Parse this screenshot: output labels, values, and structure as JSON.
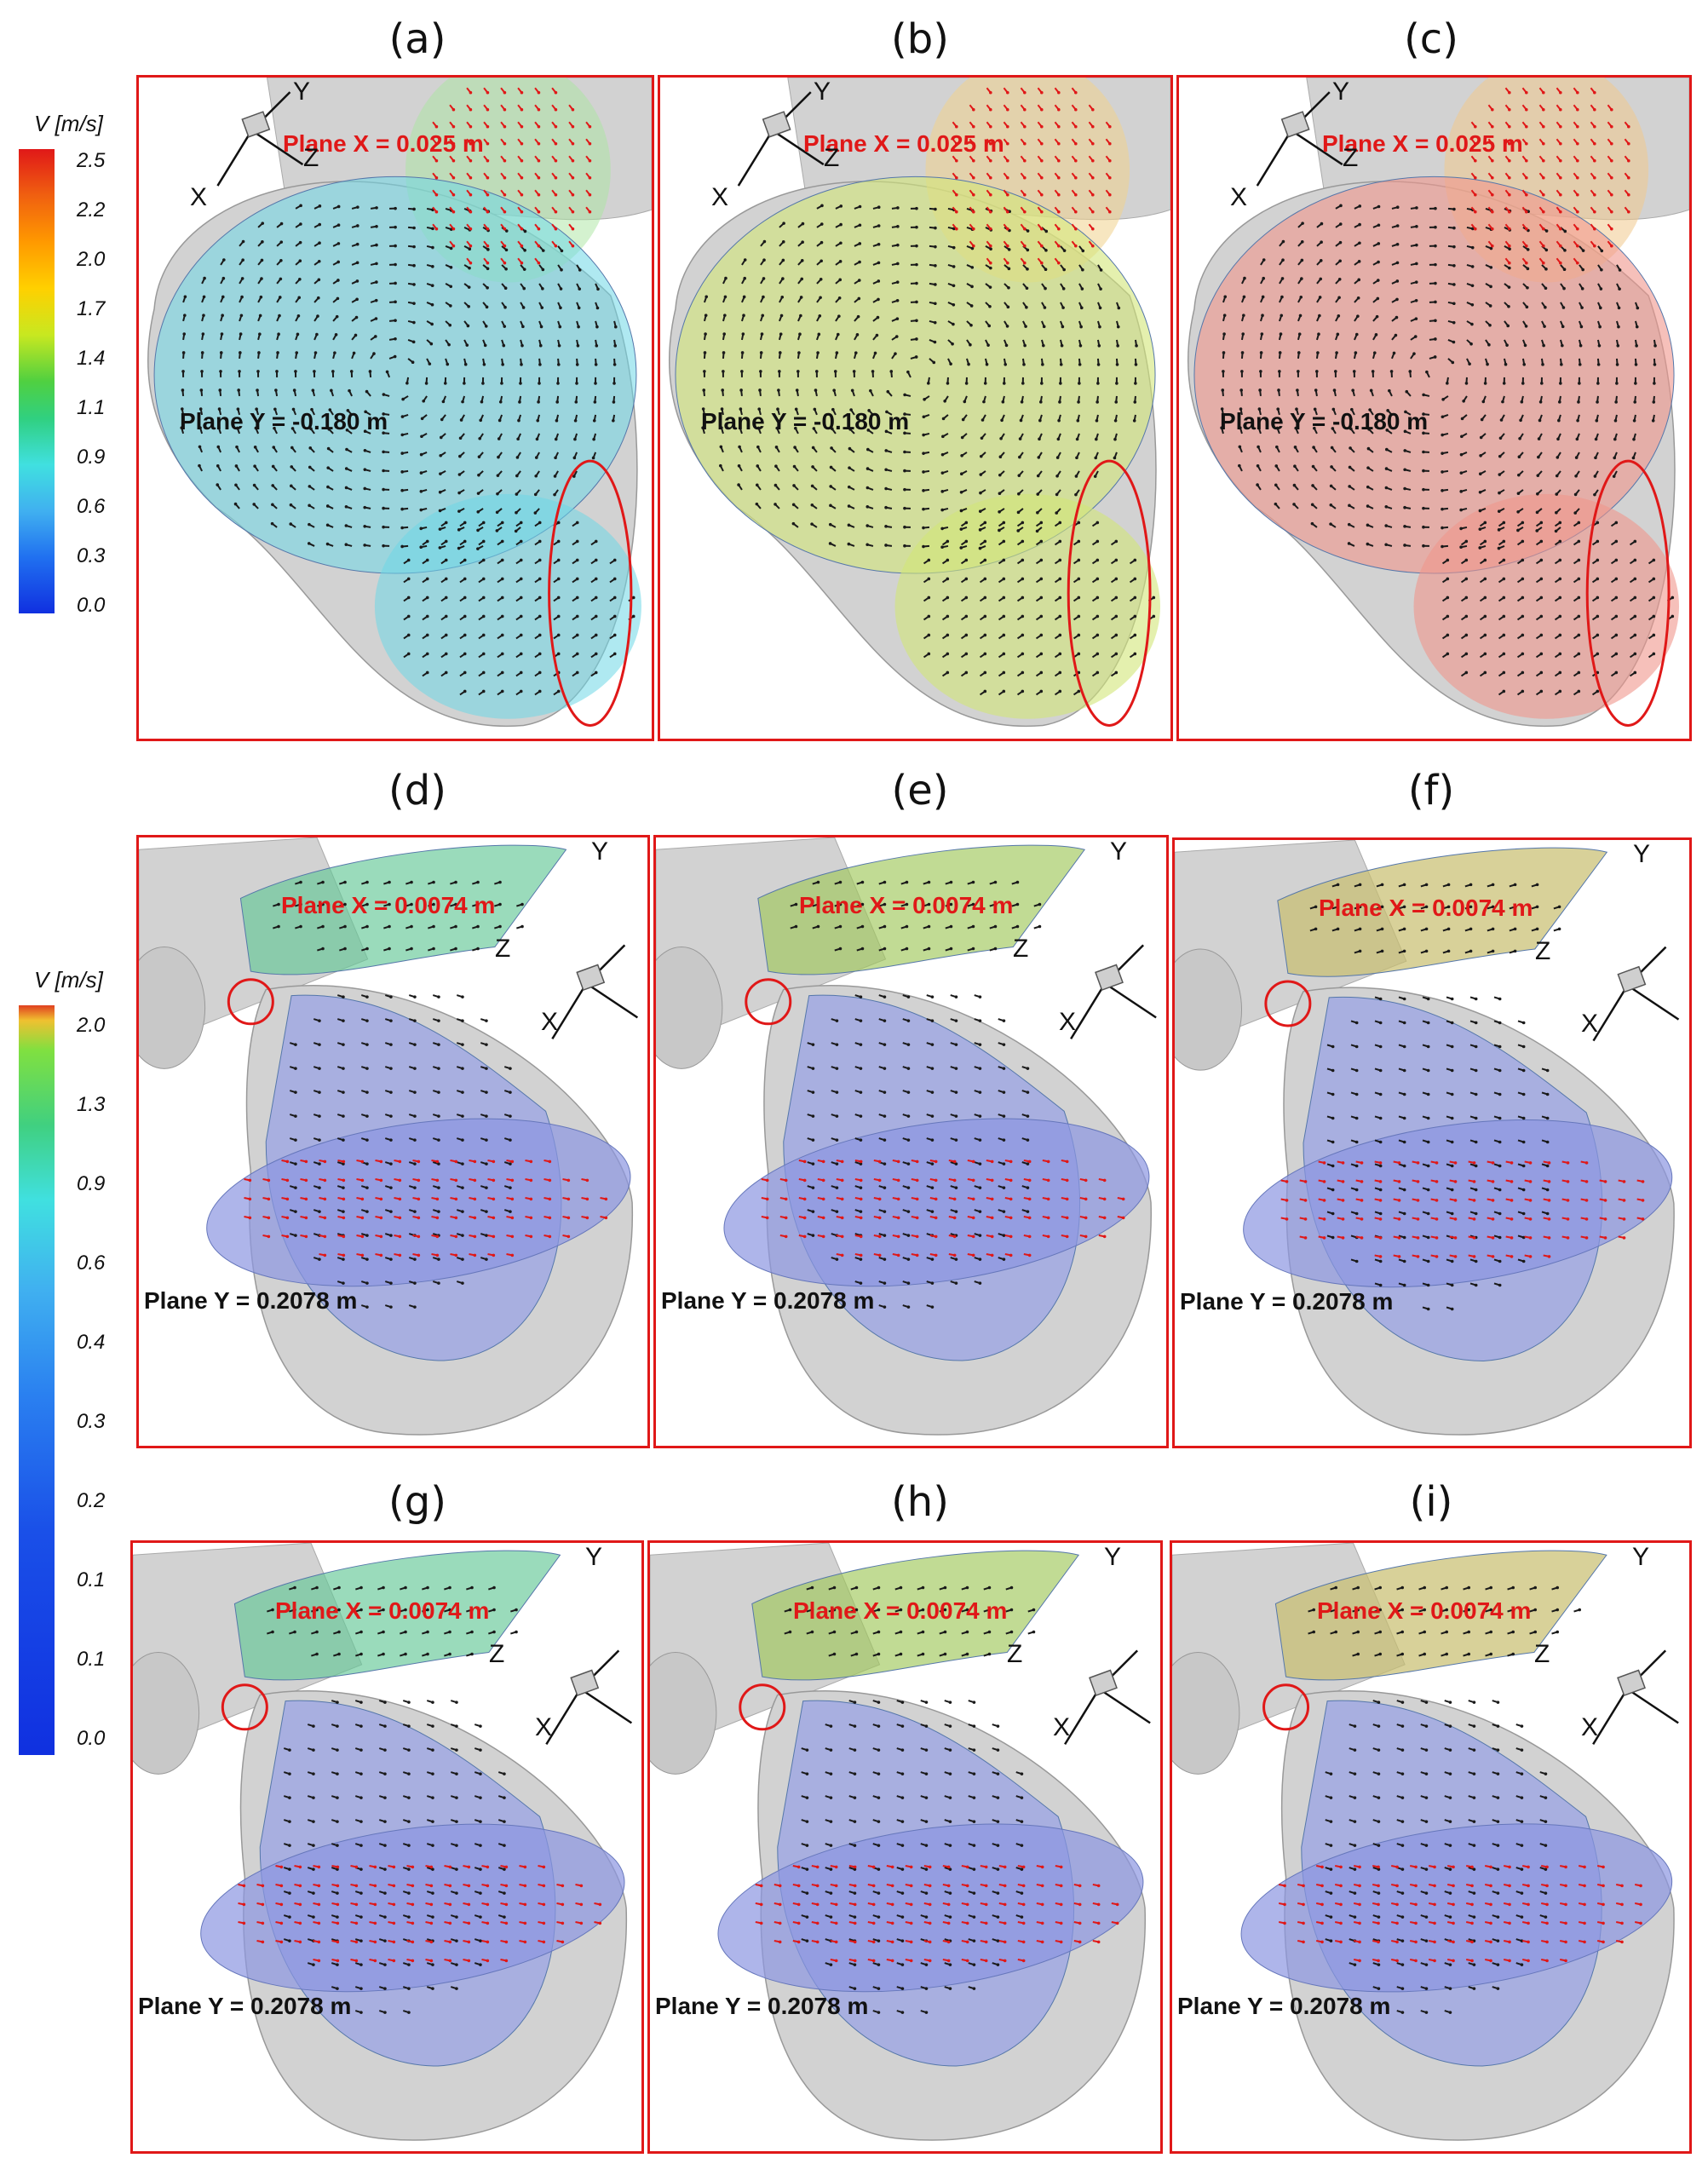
{
  "panel_labels": [
    "(a)",
    "(b)",
    "(c)",
    "(d)",
    "(e)",
    "(f)",
    "(g)",
    "(h)",
    "(i)"
  ],
  "row1": {
    "plane_x": "Plane X = 0.025 m",
    "plane_y": "Plane Y = -0.180  m"
  },
  "row23": {
    "plane_x": "Plane X = 0.0074 m",
    "plane_y": "Plane Y = 0.2078 m"
  },
  "axes": {
    "x": "X",
    "y": "Y",
    "z": "Z"
  },
  "legend_top": {
    "title": "V [m/s]",
    "ticks": [
      "2.5",
      "2.2",
      "2.0",
      "1.7",
      "1.4",
      "1.1",
      "0.9",
      "0.6",
      "0.3",
      "0.0"
    ]
  },
  "legend_bottom": {
    "title": "V [m/s]",
    "ticks": [
      "2.0",
      "1.3",
      "0.9",
      "0.6",
      "0.4",
      "0.3",
      "0.2",
      "0.1",
      "0.1",
      "0.0"
    ]
  },
  "colors": {
    "frame": "#e01818",
    "vessel": "#d2d2d2",
    "arrow_black": "#1a1a1a",
    "arrow_red": "#e01818"
  }
}
